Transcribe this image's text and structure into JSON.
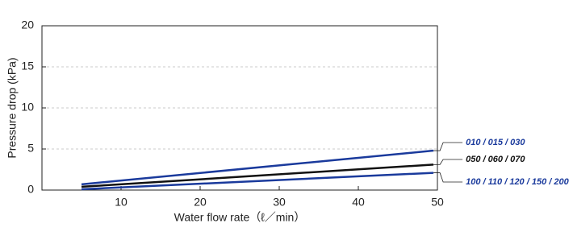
{
  "chart_data": {
    "type": "line",
    "xlabel": "Water flow rate（ℓ／min）",
    "ylabel": "Pressure drop (kPa)",
    "x": [
      5,
      49.5
    ],
    "series": [
      {
        "name": "010 / 015 / 030",
        "color": "#1a3a9c",
        "values": [
          0.7,
          4.8
        ]
      },
      {
        "name": "050 / 060 / 070",
        "color": "#111111",
        "values": [
          0.4,
          3.1
        ]
      },
      {
        "name": "100 / 110 / 120 / 150 / 200",
        "color": "#1a3a9c",
        "values": [
          0.1,
          2.1
        ]
      }
    ],
    "xlim": [
      0,
      50
    ],
    "xticks": [
      10,
      20,
      30,
      40,
      50
    ],
    "ylim": [
      0,
      20
    ],
    "yticks": [
      0,
      5,
      10,
      15,
      20
    ],
    "grid": true
  }
}
